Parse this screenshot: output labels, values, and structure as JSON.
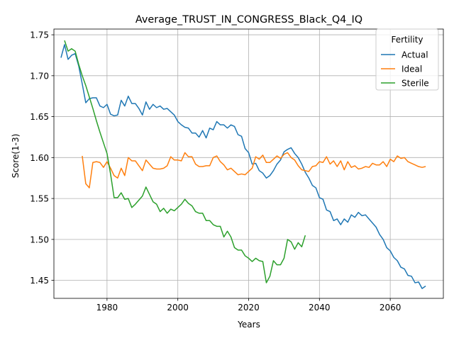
{
  "chart_data": {
    "type": "line",
    "title": "Average_TRUST_IN_CONGRESS_Black_Q4_IQ",
    "xlabel": "Years",
    "ylabel": "Score(1-3)",
    "xlim": [
      1965,
      2075
    ],
    "ylim": [
      1.428,
      1.757
    ],
    "xticks": [
      1980,
      2000,
      2020,
      2040,
      2060
    ],
    "yticks": [
      1.45,
      1.5,
      1.55,
      1.6,
      1.65,
      1.7,
      1.75
    ],
    "ytick_labels": [
      "1.45",
      "1.50",
      "1.55",
      "1.60",
      "1.65",
      "1.70",
      "1.75"
    ],
    "grid": true,
    "legend": {
      "title": "Fertility",
      "placement": "top-right"
    },
    "series": [
      {
        "name": "Actual",
        "color": "#1f77b4",
        "points": [
          [
            1967,
            1.722
          ],
          [
            1968,
            1.738
          ],
          [
            1969,
            1.72
          ],
          [
            1970,
            1.725
          ],
          [
            1971,
            1.727
          ],
          [
            1972,
            1.712
          ],
          [
            1973,
            1.69
          ],
          [
            1974,
            1.667
          ],
          [
            1975,
            1.672
          ],
          [
            1976,
            1.673
          ],
          [
            1977,
            1.673
          ],
          [
            1978,
            1.663
          ],
          [
            1979,
            1.661
          ],
          [
            1980,
            1.665
          ],
          [
            1981,
            1.653
          ],
          [
            1982,
            1.651
          ],
          [
            1983,
            1.652
          ],
          [
            1984,
            1.67
          ],
          [
            1985,
            1.663
          ],
          [
            1986,
            1.675
          ],
          [
            1987,
            1.666
          ],
          [
            1988,
            1.666
          ],
          [
            1989,
            1.66
          ],
          [
            1990,
            1.652
          ],
          [
            1991,
            1.668
          ],
          [
            1992,
            1.659
          ],
          [
            1993,
            1.665
          ],
          [
            1994,
            1.661
          ],
          [
            1995,
            1.663
          ],
          [
            1996,
            1.659
          ],
          [
            1997,
            1.66
          ],
          [
            1998,
            1.656
          ],
          [
            1999,
            1.652
          ],
          [
            2000,
            1.644
          ],
          [
            2001,
            1.64
          ],
          [
            2002,
            1.637
          ],
          [
            2003,
            1.636
          ],
          [
            2004,
            1.63
          ],
          [
            2005,
            1.63
          ],
          [
            2006,
            1.625
          ],
          [
            2007,
            1.633
          ],
          [
            2008,
            1.624
          ],
          [
            2009,
            1.636
          ],
          [
            2010,
            1.634
          ],
          [
            2011,
            1.644
          ],
          [
            2012,
            1.64
          ],
          [
            2013,
            1.64
          ],
          [
            2014,
            1.636
          ],
          [
            2015,
            1.64
          ],
          [
            2016,
            1.638
          ],
          [
            2017,
            1.628
          ],
          [
            2018,
            1.626
          ],
          [
            2019,
            1.611
          ],
          [
            2020,
            1.606
          ],
          [
            2021,
            1.592
          ],
          [
            2022,
            1.593
          ],
          [
            2023,
            1.584
          ],
          [
            2024,
            1.581
          ],
          [
            2025,
            1.575
          ],
          [
            2026,
            1.578
          ],
          [
            2027,
            1.584
          ],
          [
            2028,
            1.592
          ],
          [
            2029,
            1.597
          ],
          [
            2030,
            1.607
          ],
          [
            2031,
            1.61
          ],
          [
            2032,
            1.612
          ],
          [
            2033,
            1.605
          ],
          [
            2034,
            1.6
          ],
          [
            2035,
            1.592
          ],
          [
            2036,
            1.582
          ],
          [
            2037,
            1.575
          ],
          [
            2038,
            1.566
          ],
          [
            2039,
            1.563
          ],
          [
            2040,
            1.551
          ],
          [
            2041,
            1.549
          ],
          [
            2042,
            1.536
          ],
          [
            2043,
            1.534
          ],
          [
            2044,
            1.523
          ],
          [
            2045,
            1.525
          ],
          [
            2046,
            1.518
          ],
          [
            2047,
            1.525
          ],
          [
            2048,
            1.521
          ],
          [
            2049,
            1.53
          ],
          [
            2050,
            1.527
          ],
          [
            2051,
            1.533
          ],
          [
            2052,
            1.529
          ],
          [
            2053,
            1.53
          ],
          [
            2054,
            1.525
          ],
          [
            2055,
            1.52
          ],
          [
            2056,
            1.515
          ],
          [
            2057,
            1.506
          ],
          [
            2058,
            1.5
          ],
          [
            2059,
            1.49
          ],
          [
            2060,
            1.486
          ],
          [
            2061,
            1.478
          ],
          [
            2062,
            1.474
          ],
          [
            2063,
            1.466
          ],
          [
            2064,
            1.464
          ],
          [
            2065,
            1.456
          ],
          [
            2066,
            1.455
          ],
          [
            2067,
            1.447
          ],
          [
            2068,
            1.448
          ],
          [
            2069,
            1.44
          ],
          [
            2070,
            1.443
          ]
        ]
      },
      {
        "name": "Ideal",
        "color": "#ff7f0e",
        "points": [
          [
            1973,
            1.602
          ],
          [
            1974,
            1.568
          ],
          [
            1975,
            1.563
          ],
          [
            1976,
            1.594
          ],
          [
            1977,
            1.595
          ],
          [
            1978,
            1.594
          ],
          [
            1979,
            1.588
          ],
          [
            1980,
            1.595
          ],
          [
            1981,
            1.587
          ],
          [
            1982,
            1.578
          ],
          [
            1983,
            1.575
          ],
          [
            1984,
            1.587
          ],
          [
            1985,
            1.578
          ],
          [
            1986,
            1.6
          ],
          [
            1987,
            1.596
          ],
          [
            1988,
            1.596
          ],
          [
            1989,
            1.59
          ],
          [
            1990,
            1.584
          ],
          [
            1991,
            1.597
          ],
          [
            1992,
            1.592
          ],
          [
            1993,
            1.587
          ],
          [
            1994,
            1.586
          ],
          [
            1995,
            1.586
          ],
          [
            1996,
            1.587
          ],
          [
            1997,
            1.59
          ],
          [
            1998,
            1.601
          ],
          [
            1999,
            1.597
          ],
          [
            2000,
            1.597
          ],
          [
            2001,
            1.596
          ],
          [
            2002,
            1.606
          ],
          [
            2003,
            1.601
          ],
          [
            2004,
            1.601
          ],
          [
            2005,
            1.592
          ],
          [
            2006,
            1.589
          ],
          [
            2007,
            1.589
          ],
          [
            2008,
            1.59
          ],
          [
            2009,
            1.59
          ],
          [
            2010,
            1.6
          ],
          [
            2011,
            1.602
          ],
          [
            2012,
            1.595
          ],
          [
            2013,
            1.591
          ],
          [
            2014,
            1.585
          ],
          [
            2015,
            1.587
          ],
          [
            2016,
            1.583
          ],
          [
            2017,
            1.579
          ],
          [
            2018,
            1.58
          ],
          [
            2019,
            1.579
          ],
          [
            2020,
            1.583
          ],
          [
            2021,
            1.587
          ],
          [
            2022,
            1.601
          ],
          [
            2023,
            1.598
          ],
          [
            2024,
            1.603
          ],
          [
            2025,
            1.594
          ],
          [
            2026,
            1.594
          ],
          [
            2027,
            1.598
          ],
          [
            2028,
            1.602
          ],
          [
            2029,
            1.599
          ],
          [
            2030,
            1.604
          ],
          [
            2031,
            1.606
          ],
          [
            2032,
            1.6
          ],
          [
            2033,
            1.597
          ],
          [
            2034,
            1.59
          ],
          [
            2035,
            1.585
          ],
          [
            2036,
            1.584
          ],
          [
            2037,
            1.583
          ],
          [
            2038,
            1.589
          ],
          [
            2039,
            1.59
          ],
          [
            2040,
            1.595
          ],
          [
            2041,
            1.594
          ],
          [
            2042,
            1.601
          ],
          [
            2043,
            1.592
          ],
          [
            2044,
            1.596
          ],
          [
            2045,
            1.589
          ],
          [
            2046,
            1.596
          ],
          [
            2047,
            1.585
          ],
          [
            2048,
            1.595
          ],
          [
            2049,
            1.588
          ],
          [
            2050,
            1.59
          ],
          [
            2051,
            1.586
          ],
          [
            2052,
            1.587
          ],
          [
            2053,
            1.589
          ],
          [
            2054,
            1.588
          ],
          [
            2055,
            1.593
          ],
          [
            2056,
            1.591
          ],
          [
            2057,
            1.591
          ],
          [
            2058,
            1.595
          ],
          [
            2059,
            1.589
          ],
          [
            2060,
            1.598
          ],
          [
            2061,
            1.595
          ],
          [
            2062,
            1.602
          ],
          [
            2063,
            1.599
          ],
          [
            2064,
            1.6
          ],
          [
            2065,
            1.595
          ],
          [
            2066,
            1.593
          ],
          [
            2067,
            1.591
          ],
          [
            2068,
            1.589
          ],
          [
            2069,
            1.588
          ],
          [
            2070,
            1.589
          ]
        ]
      },
      {
        "name": "Sterile",
        "color": "#2ca02c",
        "points": [
          [
            1968,
            1.743
          ],
          [
            1969,
            1.73
          ],
          [
            1970,
            1.733
          ],
          [
            1971,
            1.73
          ],
          [
            1972,
            1.714
          ],
          [
            1973,
            1.7
          ],
          [
            1974,
            1.688
          ],
          [
            1975,
            1.674
          ],
          [
            1976,
            1.66
          ],
          [
            1977,
            1.645
          ],
          [
            1978,
            1.631
          ],
          [
            1979,
            1.618
          ],
          [
            1980,
            1.605
          ],
          [
            1981,
            1.58
          ],
          [
            1982,
            1.551
          ],
          [
            1983,
            1.551
          ],
          [
            1984,
            1.557
          ],
          [
            1985,
            1.549
          ],
          [
            1986,
            1.55
          ],
          [
            1987,
            1.539
          ],
          [
            1988,
            1.543
          ],
          [
            1989,
            1.548
          ],
          [
            1990,
            1.553
          ],
          [
            1991,
            1.564
          ],
          [
            1992,
            1.555
          ],
          [
            1993,
            1.546
          ],
          [
            1994,
            1.543
          ],
          [
            1995,
            1.534
          ],
          [
            1996,
            1.538
          ],
          [
            1997,
            1.532
          ],
          [
            1998,
            1.537
          ],
          [
            1999,
            1.535
          ],
          [
            2000,
            1.539
          ],
          [
            2001,
            1.543
          ],
          [
            2002,
            1.549
          ],
          [
            2003,
            1.544
          ],
          [
            2004,
            1.541
          ],
          [
            2005,
            1.534
          ],
          [
            2006,
            1.532
          ],
          [
            2007,
            1.532
          ],
          [
            2008,
            1.523
          ],
          [
            2009,
            1.523
          ],
          [
            2010,
            1.518
          ],
          [
            2011,
            1.516
          ],
          [
            2012,
            1.516
          ],
          [
            2013,
            1.503
          ],
          [
            2014,
            1.51
          ],
          [
            2015,
            1.503
          ],
          [
            2016,
            1.49
          ],
          [
            2017,
            1.487
          ],
          [
            2018,
            1.487
          ],
          [
            2019,
            1.48
          ],
          [
            2020,
            1.477
          ],
          [
            2021,
            1.473
          ],
          [
            2022,
            1.477
          ],
          [
            2023,
            1.474
          ],
          [
            2024,
            1.473
          ],
          [
            2025,
            1.447
          ],
          [
            2026,
            1.455
          ],
          [
            2027,
            1.474
          ],
          [
            2028,
            1.469
          ],
          [
            2029,
            1.469
          ],
          [
            2030,
            1.477
          ],
          [
            2031,
            1.5
          ],
          [
            2032,
            1.497
          ],
          [
            2033,
            1.488
          ],
          [
            2034,
            1.496
          ],
          [
            2035,
            1.491
          ],
          [
            2036,
            1.505
          ]
        ]
      }
    ]
  }
}
